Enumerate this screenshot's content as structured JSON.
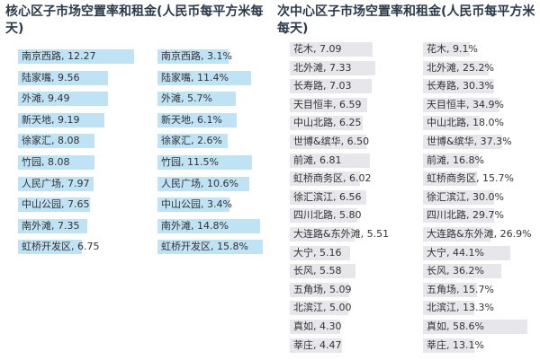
{
  "chart_data": [
    {
      "type": "bar",
      "title": "核心区子市场空置率和租金(人民币每平方米每天)",
      "color": "#bfe2f4",
      "label_separator": ", ",
      "categories": [
        "南京西路",
        "陆家嘴",
        "外滩",
        "新天地",
        "徐家汇",
        "竹园",
        "人民广场",
        "中山公园",
        "南外滩",
        "虹桥开发区"
      ],
      "values": [
        12.27,
        9.56,
        9.49,
        9.19,
        8.08,
        8.08,
        7.97,
        7.65,
        7.35,
        6.75
      ],
      "value_labels": [
        "12.27",
        "9.56",
        "9.49",
        "9.19",
        "8.08",
        "8.08",
        "7.97",
        "7.65",
        "7.35",
        "6.75"
      ]
    },
    {
      "type": "bar",
      "color": "#bfe2f4",
      "label_separator": ", ",
      "categories": [
        "南京西路",
        "陆家嘴",
        "外滩",
        "新天地",
        "徐家汇",
        "竹园",
        "人民广场",
        "中山公园",
        "南外滩",
        "虹桥开发区"
      ],
      "values": [
        3.1,
        11.4,
        5.7,
        6.1,
        2.6,
        11.5,
        10.6,
        3.4,
        14.8,
        15.8
      ],
      "value_labels": [
        "3.1%",
        "11.4%",
        "5.7%",
        "6.1%",
        "2.6%",
        "11.5%",
        "10.6%",
        "3.4%",
        "14.8%",
        "15.8%"
      ]
    },
    {
      "type": "bar",
      "title": "次中心区子市场空置率和租金(人民币每平方米每天)",
      "color": "#e6e6eb",
      "label_separator": ", ",
      "categories": [
        "花木",
        "北外滩",
        "长寿路",
        "天目恒丰",
        "中山北路",
        "世博&缤华",
        "前滩",
        "虹桥商务区",
        "徐汇滨江",
        "四川北路",
        "大连路&东外滩",
        "大宁",
        "长风",
        "五角场",
        "北滨江",
        "真如",
        "莘庄"
      ],
      "values": [
        7.09,
        7.33,
        7.03,
        6.59,
        6.25,
        6.5,
        6.81,
        6.02,
        6.56,
        5.8,
        5.51,
        5.16,
        5.58,
        5.09,
        5.0,
        4.3,
        4.47
      ],
      "value_labels": [
        "7.09",
        "7.33",
        "7.03",
        "6.59",
        "6.25",
        "6.50",
        "6.81",
        "6.02",
        "6.56",
        "5.80",
        "5.51",
        "5.16",
        "5.58",
        "5.09",
        "5.00",
        "4.30",
        "4.47"
      ]
    },
    {
      "type": "bar",
      "color": "#e6e6eb",
      "label_separator": ", ",
      "categories": [
        "花木",
        "北外滩",
        "长寿路",
        "天目恒丰",
        "中山北路",
        "世博&缤华",
        "前滩",
        "虹桥商务区",
        "徐汇滨江",
        "四川北路",
        "大连路&东外滩",
        "大宁",
        "长风",
        "五角场",
        "北滨江",
        "真如",
        "莘庄"
      ],
      "values": [
        9.1,
        25.2,
        30.3,
        34.9,
        18.0,
        37.3,
        16.8,
        15.7,
        30.0,
        29.7,
        26.9,
        44.1,
        36.2,
        15.7,
        13.3,
        58.6,
        13.1
      ],
      "value_labels": [
        "9.1%",
        "25.2%",
        "30.3%",
        "34.9%",
        "18.0%",
        "37.3%",
        "16.8%",
        "15.7%",
        "30.0%",
        "29.7%",
        "26.9%",
        "44.1%",
        "36.2%",
        "15.7%",
        "13.3%",
        "58.6%",
        "13.1%"
      ]
    }
  ]
}
